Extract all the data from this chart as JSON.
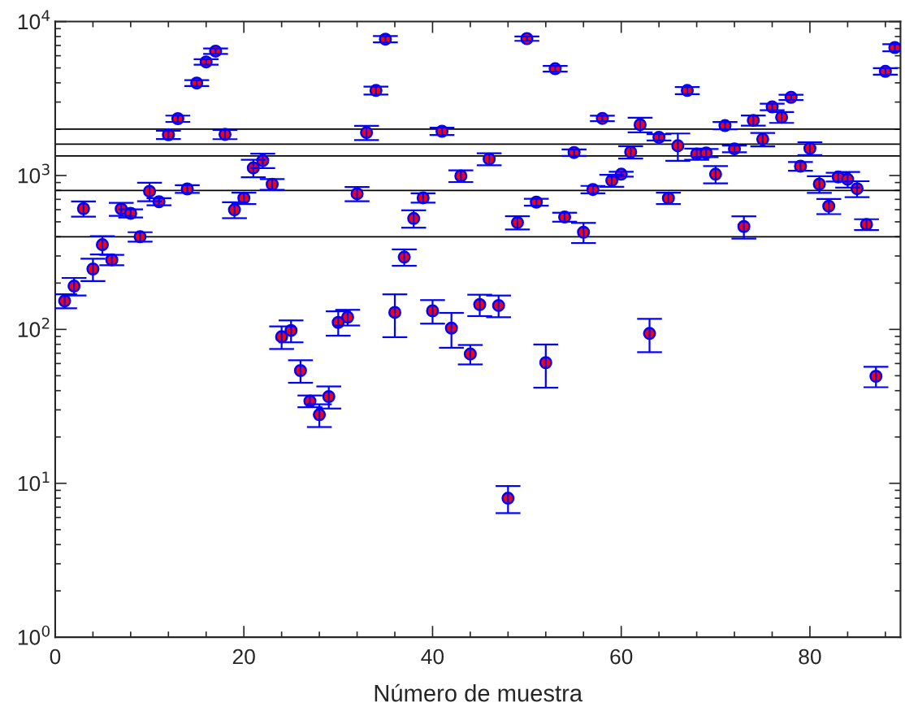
{
  "chart_data": {
    "type": "scatter",
    "xlabel": "Número de muestra",
    "x": [
      1,
      2,
      3,
      4,
      5,
      6,
      7,
      8,
      9,
      10,
      11,
      12,
      13,
      14,
      15,
      16,
      17,
      18,
      19,
      20,
      21,
      22,
      23,
      24,
      25,
      26,
      27,
      28,
      29,
      30,
      31,
      32,
      33,
      34,
      35,
      36,
      37,
      38,
      39,
      40,
      41,
      42,
      43,
      44,
      45,
      46,
      47,
      48,
      49,
      50,
      51,
      52,
      53,
      54,
      55,
      56,
      57,
      58,
      59,
      60,
      61,
      62,
      63,
      64,
      65,
      66,
      67,
      68,
      69,
      70,
      71,
      72,
      73,
      74,
      75,
      76,
      77,
      78,
      79,
      80,
      81,
      82,
      83,
      84,
      85,
      86,
      87,
      88,
      89
    ],
    "series": [
      {
        "color": "#ff0000",
        "values": [
          153,
          191,
          609,
          247,
          355,
          283,
          606,
          568,
          400,
          789,
          676,
          1840,
          2340,
          818,
          3990,
          5470,
          6430,
          1850,
          599,
          713,
          1120,
          1250,
          877,
          89.6,
          98.4,
          54,
          34.2,
          27.9,
          36.6,
          111,
          120,
          761,
          1900,
          3570,
          7690,
          129,
          295,
          526,
          716,
          132,
          1940,
          102,
          994,
          69.2,
          145,
          1280,
          143,
          8.0,
          495,
          7750,
          671,
          60.8,
          4940,
          537,
          1410,
          428,
          811,
          2350,
          927,
          1020,
          1420,
          2140,
          94.1,
          1770,
          713,
          1560,
          3570,
          1380,
          1400,
          1020,
          2110,
          1490,
          466,
          2280,
          1720,
          2790,
          2390,
          3220,
          1150,
          1500,
          880,
          632,
          978,
          944,
          821,
          481,
          49.6,
          4750,
          6780
        ],
        "errors": [
          16,
          25,
          69,
          41,
          48,
          22,
          59,
          34,
          28,
          109,
          36,
          116,
          110,
          48,
          180,
          230,
          260,
          128,
          71,
          61,
          145,
          134,
          71,
          15,
          16,
          9,
          3,
          4.7,
          6,
          20,
          14,
          81,
          203,
          210,
          360,
          40,
          36,
          68,
          50,
          23,
          106,
          26,
          87,
          10,
          23,
          114,
          23,
          1.6,
          49,
          250,
          34,
          19,
          210,
          36,
          69,
          64,
          45,
          95,
          83,
          37,
          132,
          235,
          23,
          83,
          61,
          315,
          190,
          114,
          85,
          131,
          116,
          76,
          77,
          171,
          172,
          137,
          194,
          130,
          75,
          142,
          109,
          71,
          64,
          109,
          97,
          39,
          7.5,
          230,
          360
        ]
      }
    ],
    "marker": "circle",
    "log": "y",
    "grid": false,
    "legend": false,
    "xlim": [
      0,
      89.6
    ],
    "xticks": [
      0,
      20,
      40,
      60,
      80
    ],
    "ylim": [
      1,
      10000
    ],
    "yticks": [
      {
        "value": 1,
        "label": "10$^{0}$"
      },
      {
        "value": 10,
        "label": "10$^{1}$"
      },
      {
        "value": 100,
        "label": "10$^{2}$"
      },
      {
        "value": 1000,
        "label": "10$^{3}$"
      },
      {
        "value": 10000,
        "label": "10$^{4}$"
      }
    ],
    "ref_lines": [
      {
        "axis": "y",
        "value": 2000,
        "color": "#000000"
      },
      {
        "axis": "y",
        "value": 1600,
        "color": "#000000"
      },
      {
        "axis": "y",
        "value": 1340,
        "color": "#000000"
      },
      {
        "axis": "y",
        "value": 800,
        "color": "#000000"
      },
      {
        "axis": "y",
        "value": 400,
        "color": "#000000"
      }
    ]
  }
}
